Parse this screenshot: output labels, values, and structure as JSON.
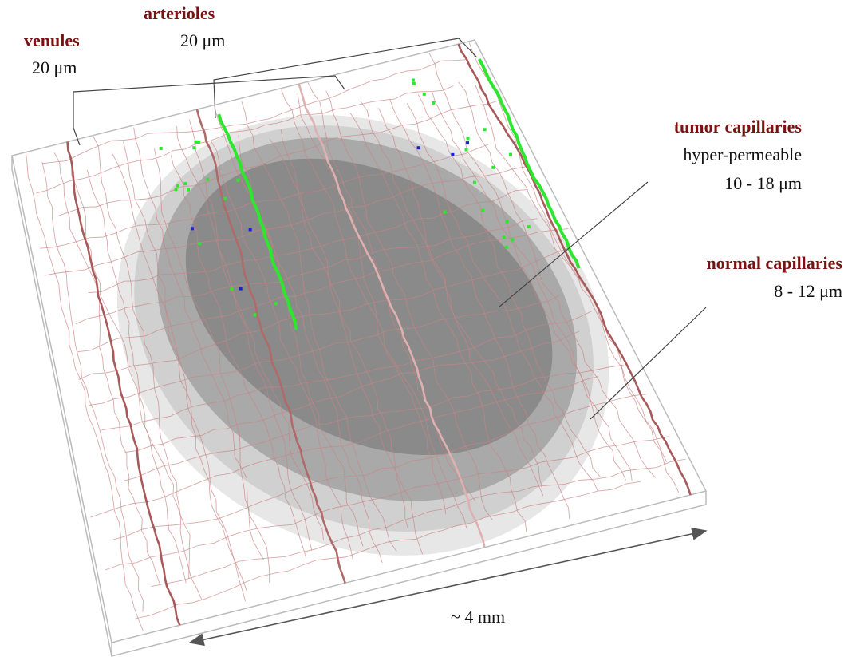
{
  "labels": {
    "venules": {
      "title": "venules",
      "size": "20 μm"
    },
    "arterioles": {
      "title": "arterioles",
      "size": "20 μm"
    },
    "tumor_capillaries": {
      "title": "tumor capillaries",
      "property": "hyper-permeable",
      "size": "10 - 18 μm"
    },
    "normal_capillaries": {
      "title": "normal capillaries",
      "size": "8 - 12 μm"
    }
  },
  "scale": "~ 4 mm"
}
